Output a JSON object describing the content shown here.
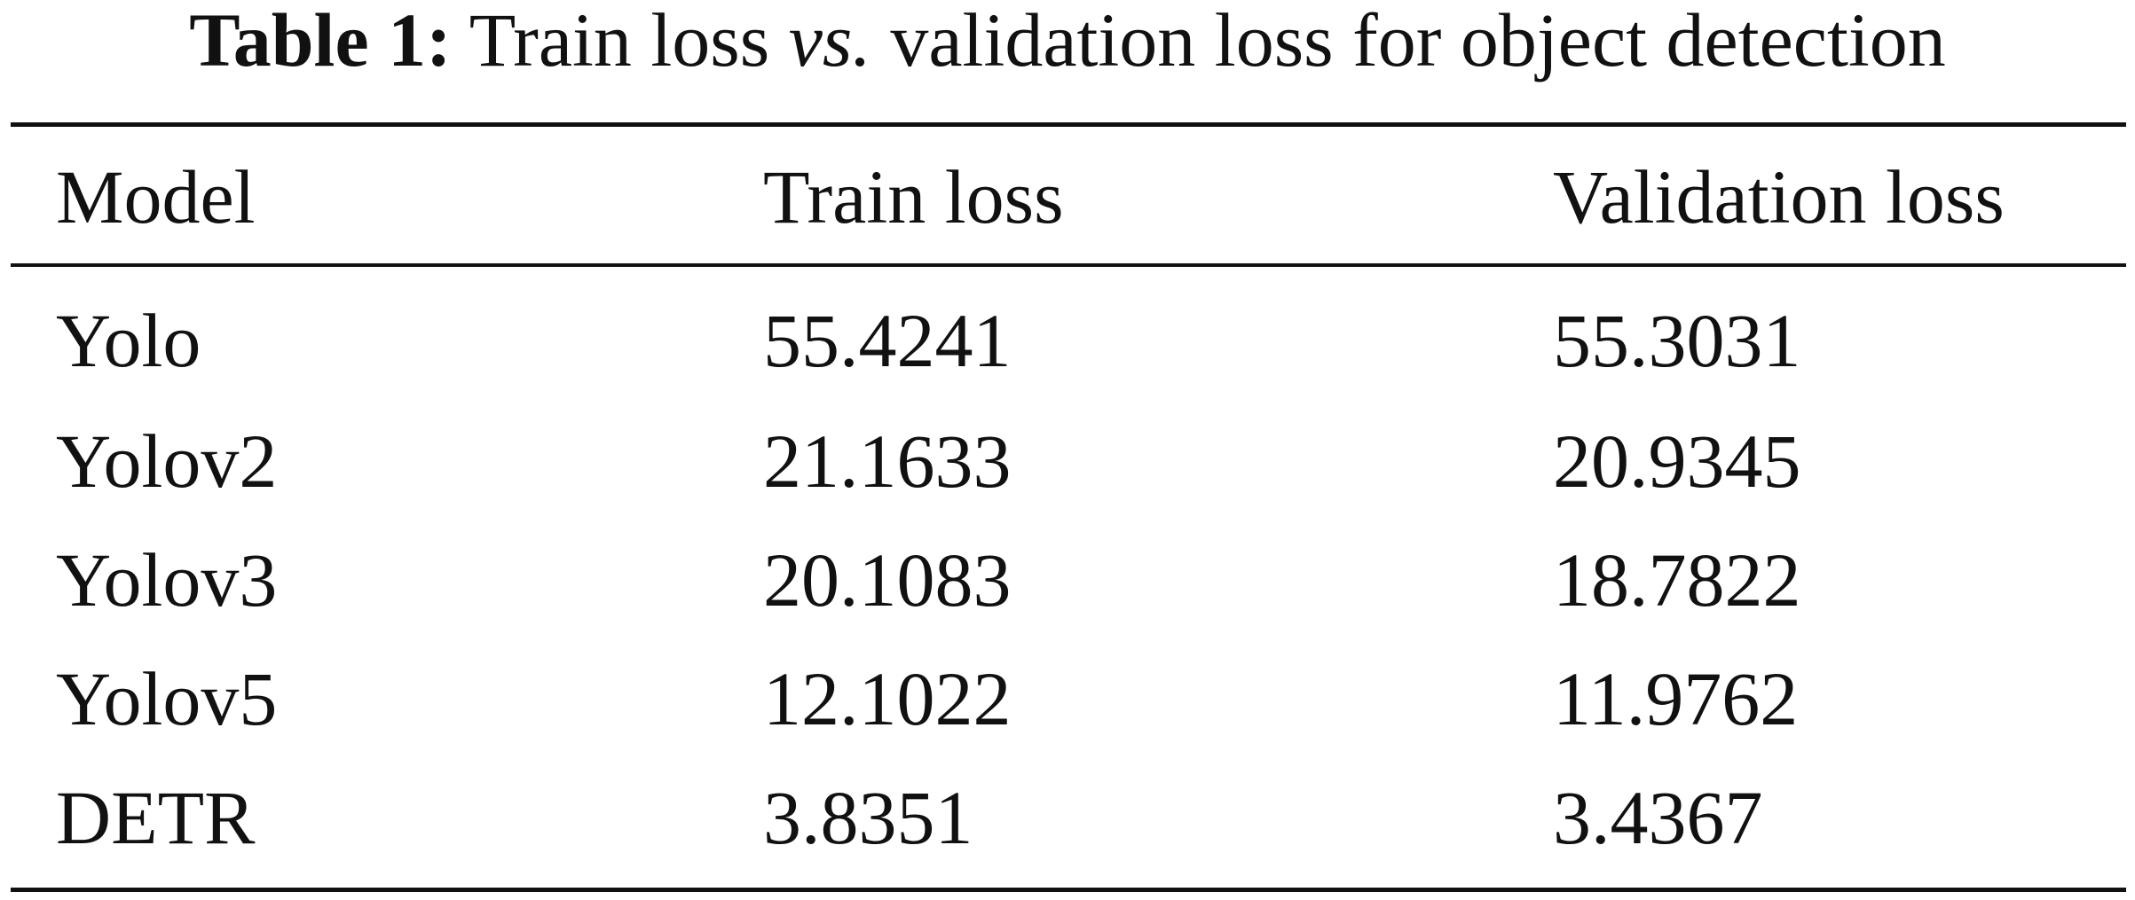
{
  "table": {
    "caption": {
      "label": "Table 1:",
      "text_before": "Train loss",
      "text_italic": "vs.",
      "text_after": "validation loss for object detection"
    },
    "columns": [
      "Model",
      "Train loss",
      "Validation loss"
    ],
    "rows": [
      {
        "model": "Yolo",
        "train_loss": "55.4241",
        "validation_loss": "55.3031"
      },
      {
        "model": "Yolov2",
        "train_loss": "21.1633",
        "validation_loss": "20.9345"
      },
      {
        "model": "Yolov3",
        "train_loss": "20.1083",
        "validation_loss": "18.7822"
      },
      {
        "model": "Yolov5",
        "train_loss": "12.1022",
        "validation_loss": "11.9762"
      },
      {
        "model": "DETR",
        "train_loss": "3.8351",
        "validation_loss": "3.4367"
      }
    ]
  }
}
